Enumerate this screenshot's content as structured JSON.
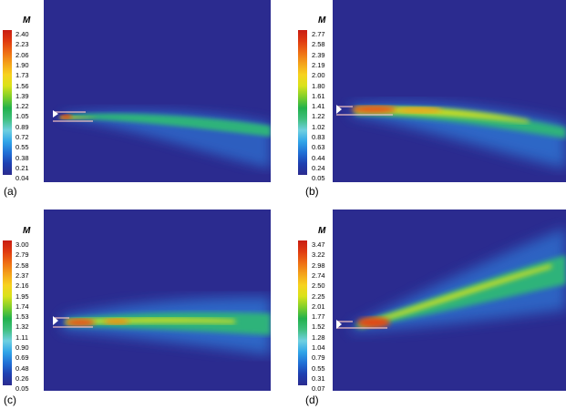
{
  "panels": [
    {
      "label": "(a)",
      "title": "M",
      "ticks": [
        "2.40",
        "2.23",
        "2.06",
        "1.90",
        "1.73",
        "1.56",
        "1.39",
        "1.22",
        "1.05",
        "0.89",
        "0.72",
        "0.55",
        "0.38",
        "0.21",
        "0.04"
      ]
    },
    {
      "label": "(b)",
      "title": "M",
      "ticks": [
        "2.77",
        "2.58",
        "2.39",
        "2.19",
        "2.00",
        "1.80",
        "1.61",
        "1.41",
        "1.22",
        "1.02",
        "0.83",
        "0.63",
        "0.44",
        "0.24",
        "0.05"
      ]
    },
    {
      "label": "(c)",
      "title": "M",
      "ticks": [
        "3.00",
        "2.79",
        "2.58",
        "2.37",
        "2.16",
        "1.95",
        "1.74",
        "1.53",
        "1.32",
        "1.11",
        "0.90",
        "0.69",
        "0.48",
        "0.26",
        "0.05"
      ]
    },
    {
      "label": "(d)",
      "title": "M",
      "ticks": [
        "3.47",
        "3.22",
        "2.98",
        "2.74",
        "2.50",
        "2.25",
        "2.01",
        "1.77",
        "1.52",
        "1.28",
        "1.04",
        "0.79",
        "0.55",
        "0.31",
        "0.07"
      ]
    }
  ],
  "colors": {
    "background": "#2b2b8f",
    "scale": [
      "#2b2b8f",
      "#1e3fb0",
      "#2070d6",
      "#31a5e8",
      "#6fd0e0",
      "#3fbf7f",
      "#22b14c",
      "#7fcf2a",
      "#d9e21a",
      "#f7d21e",
      "#f4a21a",
      "#ee6d14",
      "#e03a10",
      "#c81d12"
    ]
  }
}
